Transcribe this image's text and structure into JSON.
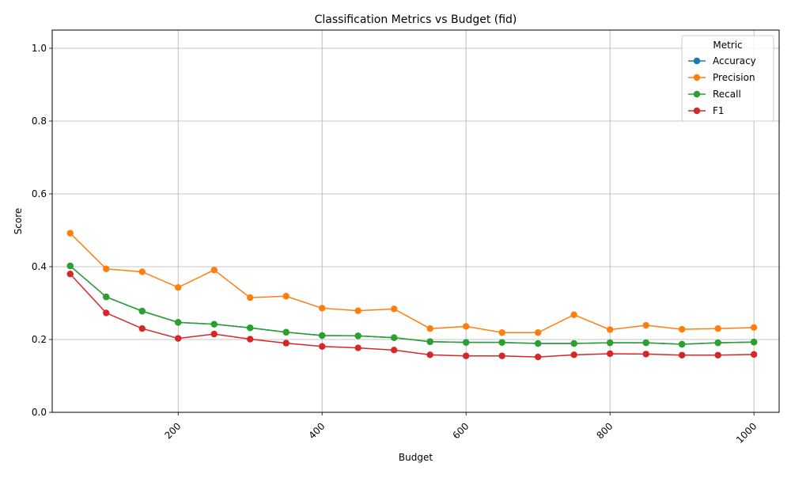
{
  "chart_data": {
    "type": "line",
    "title": "Classification Metrics vs Budget (fid)",
    "xlabel": "Budget",
    "ylabel": "Score",
    "xlim": [
      25,
      1035
    ],
    "ylim": [
      0,
      1.05
    ],
    "xticks": [
      200,
      400,
      600,
      800,
      1000
    ],
    "yticks": [
      0.0,
      0.2,
      0.4,
      0.6,
      0.8,
      1.0
    ],
    "xtick_labels": [
      "200",
      "400",
      "600",
      "800",
      "1000"
    ],
    "ytick_labels": [
      "0.0",
      "0.2",
      "0.4",
      "0.6",
      "0.8",
      "1.0"
    ],
    "grid": true,
    "legend_title": "Metric",
    "legend_position": "top-right",
    "x": [
      50,
      100,
      150,
      200,
      250,
      300,
      350,
      400,
      450,
      500,
      550,
      600,
      650,
      700,
      750,
      800,
      850,
      900,
      950,
      1000
    ],
    "series": [
      {
        "name": "Accuracy",
        "color": "#1f77b4",
        "values": [
          0.402,
          0.317,
          0.278,
          0.247,
          0.242,
          0.232,
          0.22,
          0.211,
          0.21,
          0.205,
          0.194,
          0.192,
          0.192,
          0.189,
          0.189,
          0.191,
          0.191,
          0.187,
          0.191,
          0.193
        ]
      },
      {
        "name": "Precision",
        "color": "#ff7f0e",
        "values": [
          0.492,
          0.394,
          0.386,
          0.343,
          0.391,
          0.315,
          0.319,
          0.286,
          0.279,
          0.284,
          0.23,
          0.236,
          0.219,
          0.219,
          0.268,
          0.227,
          0.239,
          0.228,
          0.23,
          0.233
        ]
      },
      {
        "name": "Recall",
        "color": "#2ca02c",
        "values": [
          0.402,
          0.317,
          0.278,
          0.247,
          0.242,
          0.232,
          0.22,
          0.211,
          0.21,
          0.205,
          0.194,
          0.192,
          0.192,
          0.189,
          0.189,
          0.191,
          0.191,
          0.187,
          0.191,
          0.193
        ]
      },
      {
        "name": "F1",
        "color": "#d62728",
        "values": [
          0.38,
          0.273,
          0.23,
          0.203,
          0.215,
          0.201,
          0.19,
          0.181,
          0.177,
          0.171,
          0.158,
          0.155,
          0.155,
          0.152,
          0.158,
          0.161,
          0.16,
          0.157,
          0.157,
          0.159
        ]
      }
    ]
  }
}
